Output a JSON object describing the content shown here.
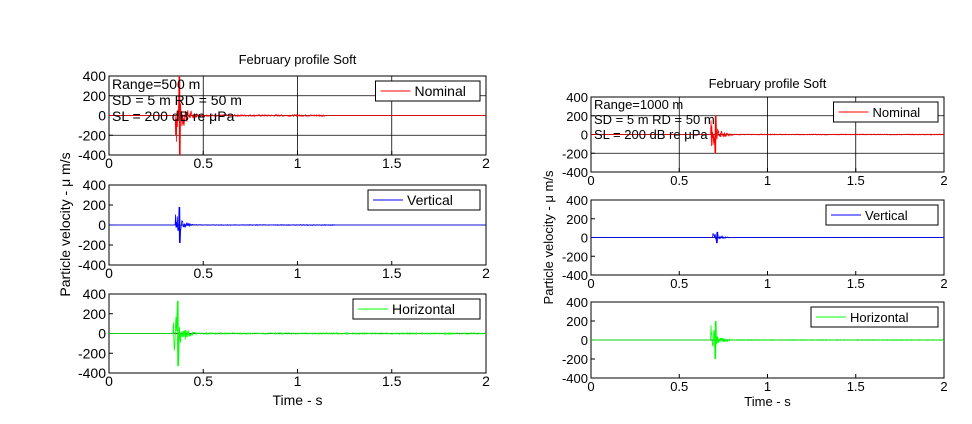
{
  "chart_data": [
    {
      "type": "line",
      "title": "February profile Soft",
      "xlabel": "Time - s",
      "ylabel": "Particle velocity -  μ m/s",
      "annotations": [
        "Range=500 m",
        "SD = 5 m  RD = 50 m",
        "SL = 200 dB re μPa"
      ],
      "xlim": [
        0,
        2
      ],
      "ylim": [
        -400,
        400
      ],
      "xticks": [
        "0",
        "0.5",
        "1",
        "1.5",
        "2"
      ],
      "yticks": [
        "400",
        "200",
        "0",
        "-200",
        "-400"
      ],
      "grid_on_first_subplot": true,
      "legend_placement": "top-right",
      "series": [
        {
          "name": "Nominal",
          "color": "#ff0000",
          "arrival_s": 0.35,
          "peak_um_s": 400,
          "burst_s": 0.12,
          "tail_end_s": 1.15
        },
        {
          "name": "Vertical",
          "color": "#0000ff",
          "arrival_s": 0.35,
          "peak_um_s": 180,
          "burst_s": 0.1,
          "tail_end_s": 1.2
        },
        {
          "name": "Horizontal",
          "color": "#00ff00",
          "arrival_s": 0.34,
          "peak_um_s": 330,
          "burst_s": 0.12,
          "tail_end_s": 2.0
        }
      ]
    },
    {
      "type": "line",
      "title": "February profile Soft",
      "xlabel": "Time - s",
      "ylabel": "Particle velocity -  μ m/s",
      "annotations": [
        "Range=1000 m",
        "SD = 5 m  RD = 50 m",
        "SL = 200 dB re μPa"
      ],
      "xlim": [
        0,
        2
      ],
      "ylim": [
        -400,
        400
      ],
      "xticks": [
        "0",
        "0.5",
        "1",
        "1.5",
        "2"
      ],
      "yticks": [
        "400",
        "200",
        "0",
        "-200",
        "-400"
      ],
      "grid_on_first_subplot": true,
      "legend_placement": "top-right",
      "series": [
        {
          "name": "Nominal",
          "color": "#ff0000",
          "arrival_s": 0.68,
          "peak_um_s": 200,
          "burst_s": 0.12,
          "tail_end_s": 2.0
        },
        {
          "name": "Vertical",
          "color": "#0000ff",
          "arrival_s": 0.69,
          "peak_um_s": 60,
          "burst_s": 0.1,
          "tail_end_s": 2.0
        },
        {
          "name": "Horizontal",
          "color": "#00ff00",
          "arrival_s": 0.68,
          "peak_um_s": 200,
          "burst_s": 0.11,
          "tail_end_s": 2.0
        }
      ]
    }
  ]
}
